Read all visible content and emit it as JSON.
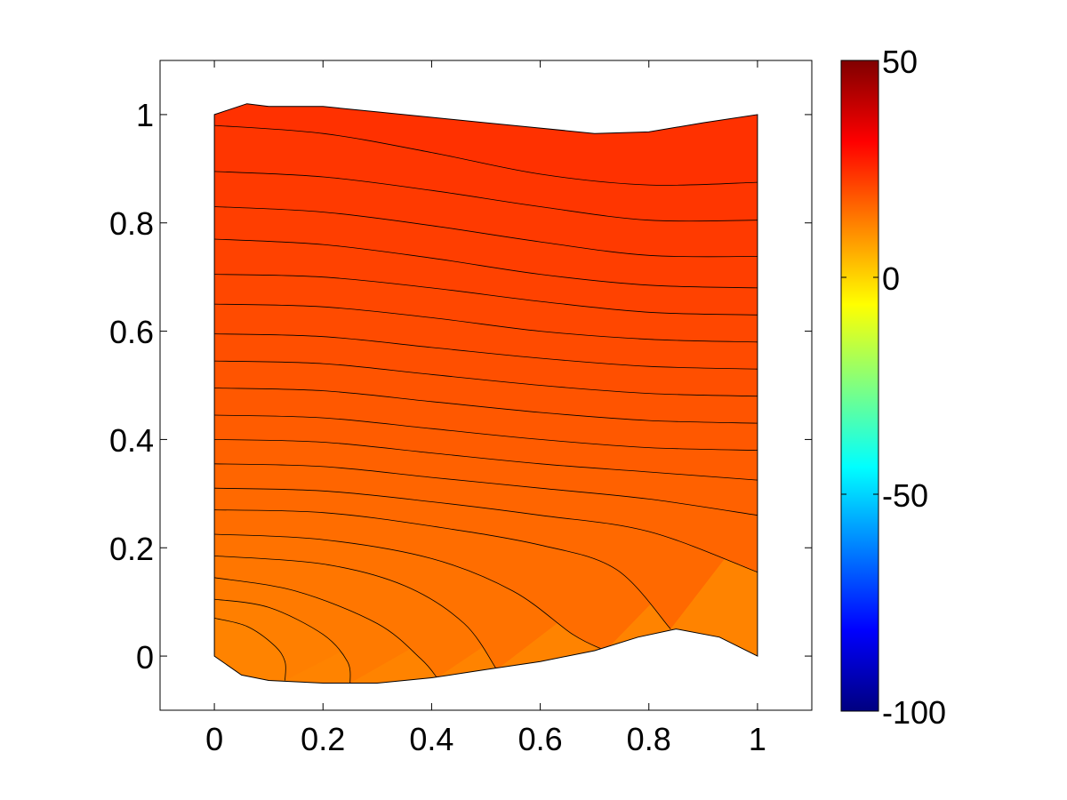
{
  "chart_data": [
    {
      "type": "heatmap",
      "subtype": "filled contour plot",
      "title": "",
      "xlabel": "",
      "ylabel": "",
      "xlim": [
        -0.1,
        1.1
      ],
      "ylim": [
        -0.1,
        1.1
      ],
      "xticks": [
        0,
        0.2,
        0.4,
        0.6,
        0.8,
        1
      ],
      "xtick_labels": [
        "0",
        "0.2",
        "0.4",
        "0.6",
        "0.8",
        "1"
      ],
      "yticks": [
        0,
        0.2,
        0.4,
        0.6,
        0.8,
        1
      ],
      "ytick_labels": [
        "0",
        "0.2",
        "0.4",
        "0.6",
        "0.8",
        "1"
      ],
      "grid": false,
      "domain_boundary": {
        "top": [
          [
            0,
            1.0
          ],
          [
            0.06,
            1.02
          ],
          [
            0.1,
            1.015
          ],
          [
            0.2,
            1.015
          ],
          [
            0.3,
            1.005
          ],
          [
            0.4,
            0.995
          ],
          [
            0.5,
            0.985
          ],
          [
            0.6,
            0.975
          ],
          [
            0.7,
            0.965
          ],
          [
            0.8,
            0.968
          ],
          [
            0.9,
            0.985
          ],
          [
            1.0,
            1.0
          ]
        ],
        "bottom": [
          [
            0,
            0
          ],
          [
            0.05,
            -0.035
          ],
          [
            0.1,
            -0.045
          ],
          [
            0.2,
            -0.05
          ],
          [
            0.3,
            -0.05
          ],
          [
            0.4,
            -0.04
          ],
          [
            0.5,
            -0.025
          ],
          [
            0.6,
            -0.01
          ],
          [
            0.7,
            0.01
          ],
          [
            0.78,
            0.035
          ],
          [
            0.85,
            0.05
          ],
          [
            0.93,
            0.035
          ],
          [
            1.0,
            0.0
          ]
        ]
      },
      "contour_lines": [
        [
          [
            0,
            0.98
          ],
          [
            0.2,
            0.965
          ],
          [
            0.4,
            0.93
          ],
          [
            0.6,
            0.89
          ],
          [
            0.8,
            0.87
          ],
          [
            1.0,
            0.875
          ]
        ],
        [
          [
            0,
            0.895
          ],
          [
            0.2,
            0.885
          ],
          [
            0.4,
            0.86
          ],
          [
            0.6,
            0.83
          ],
          [
            0.8,
            0.805
          ],
          [
            1.0,
            0.805
          ]
        ],
        [
          [
            0,
            0.83
          ],
          [
            0.2,
            0.82
          ],
          [
            0.4,
            0.795
          ],
          [
            0.6,
            0.765
          ],
          [
            0.8,
            0.74
          ],
          [
            1.0,
            0.738
          ]
        ],
        [
          [
            0,
            0.77
          ],
          [
            0.2,
            0.76
          ],
          [
            0.4,
            0.735
          ],
          [
            0.6,
            0.705
          ],
          [
            0.8,
            0.685
          ],
          [
            1.0,
            0.68
          ]
        ],
        [
          [
            0,
            0.705
          ],
          [
            0.2,
            0.7
          ],
          [
            0.4,
            0.68
          ],
          [
            0.6,
            0.655
          ],
          [
            0.8,
            0.635
          ],
          [
            1.0,
            0.63
          ]
        ],
        [
          [
            0,
            0.65
          ],
          [
            0.2,
            0.645
          ],
          [
            0.4,
            0.625
          ],
          [
            0.6,
            0.6
          ],
          [
            0.8,
            0.585
          ],
          [
            1.0,
            0.58
          ]
        ],
        [
          [
            0,
            0.595
          ],
          [
            0.2,
            0.59
          ],
          [
            0.4,
            0.57
          ],
          [
            0.6,
            0.55
          ],
          [
            0.8,
            0.535
          ],
          [
            1.0,
            0.53
          ]
        ],
        [
          [
            0,
            0.545
          ],
          [
            0.2,
            0.54
          ],
          [
            0.4,
            0.52
          ],
          [
            0.6,
            0.5
          ],
          [
            0.8,
            0.485
          ],
          [
            1.0,
            0.48
          ]
        ],
        [
          [
            0,
            0.495
          ],
          [
            0.2,
            0.49
          ],
          [
            0.4,
            0.47
          ],
          [
            0.6,
            0.45
          ],
          [
            0.8,
            0.435
          ],
          [
            1.0,
            0.43
          ]
        ],
        [
          [
            0,
            0.445
          ],
          [
            0.2,
            0.44
          ],
          [
            0.4,
            0.42
          ],
          [
            0.6,
            0.4
          ],
          [
            0.8,
            0.385
          ],
          [
            1.0,
            0.38
          ]
        ],
        [
          [
            0,
            0.4
          ],
          [
            0.2,
            0.395
          ],
          [
            0.4,
            0.375
          ],
          [
            0.6,
            0.355
          ],
          [
            0.8,
            0.34
          ],
          [
            1.0,
            0.325
          ]
        ],
        [
          [
            0,
            0.355
          ],
          [
            0.2,
            0.35
          ],
          [
            0.4,
            0.33
          ],
          [
            0.6,
            0.31
          ],
          [
            0.8,
            0.29
          ],
          [
            1.0,
            0.26
          ]
        ],
        [
          [
            0,
            0.31
          ],
          [
            0.2,
            0.305
          ],
          [
            0.4,
            0.285
          ],
          [
            0.6,
            0.26
          ],
          [
            0.8,
            0.23
          ],
          [
            1.0,
            0.155
          ]
        ],
        [
          [
            0,
            0.27
          ],
          [
            0.2,
            0.265
          ],
          [
            0.4,
            0.24
          ],
          [
            0.6,
            0.205
          ],
          [
            0.74,
            0.16
          ],
          [
            0.84,
            0.05
          ]
        ],
        [
          [
            0,
            0.225
          ],
          [
            0.2,
            0.215
          ],
          [
            0.4,
            0.18
          ],
          [
            0.55,
            0.12
          ],
          [
            0.66,
            0.04
          ],
          [
            0.72,
            0.01
          ]
        ],
        [
          [
            0,
            0.185
          ],
          [
            0.2,
            0.17
          ],
          [
            0.35,
            0.13
          ],
          [
            0.46,
            0.06
          ],
          [
            0.52,
            -0.025
          ]
        ],
        [
          [
            0,
            0.145
          ],
          [
            0.15,
            0.12
          ],
          [
            0.3,
            0.06
          ],
          [
            0.38,
            -0.005
          ],
          [
            0.41,
            -0.04
          ]
        ],
        [
          [
            0,
            0.105
          ],
          [
            0.1,
            0.09
          ],
          [
            0.2,
            0.04
          ],
          [
            0.245,
            -0.01
          ],
          [
            0.25,
            -0.05
          ]
        ],
        [
          [
            0,
            0.07
          ],
          [
            0.06,
            0.055
          ],
          [
            0.11,
            0.02
          ],
          [
            0.13,
            -0.01
          ],
          [
            0.13,
            -0.045
          ]
        ]
      ],
      "colorbar": {
        "colormap": "jet",
        "min": -100,
        "max": 50,
        "ticks": [
          50,
          0,
          -50,
          -100
        ],
        "tick_labels": [
          "50",
          "0",
          "-50",
          "-100"
        ]
      },
      "field_color_range": [
        12,
        24
      ]
    }
  ]
}
